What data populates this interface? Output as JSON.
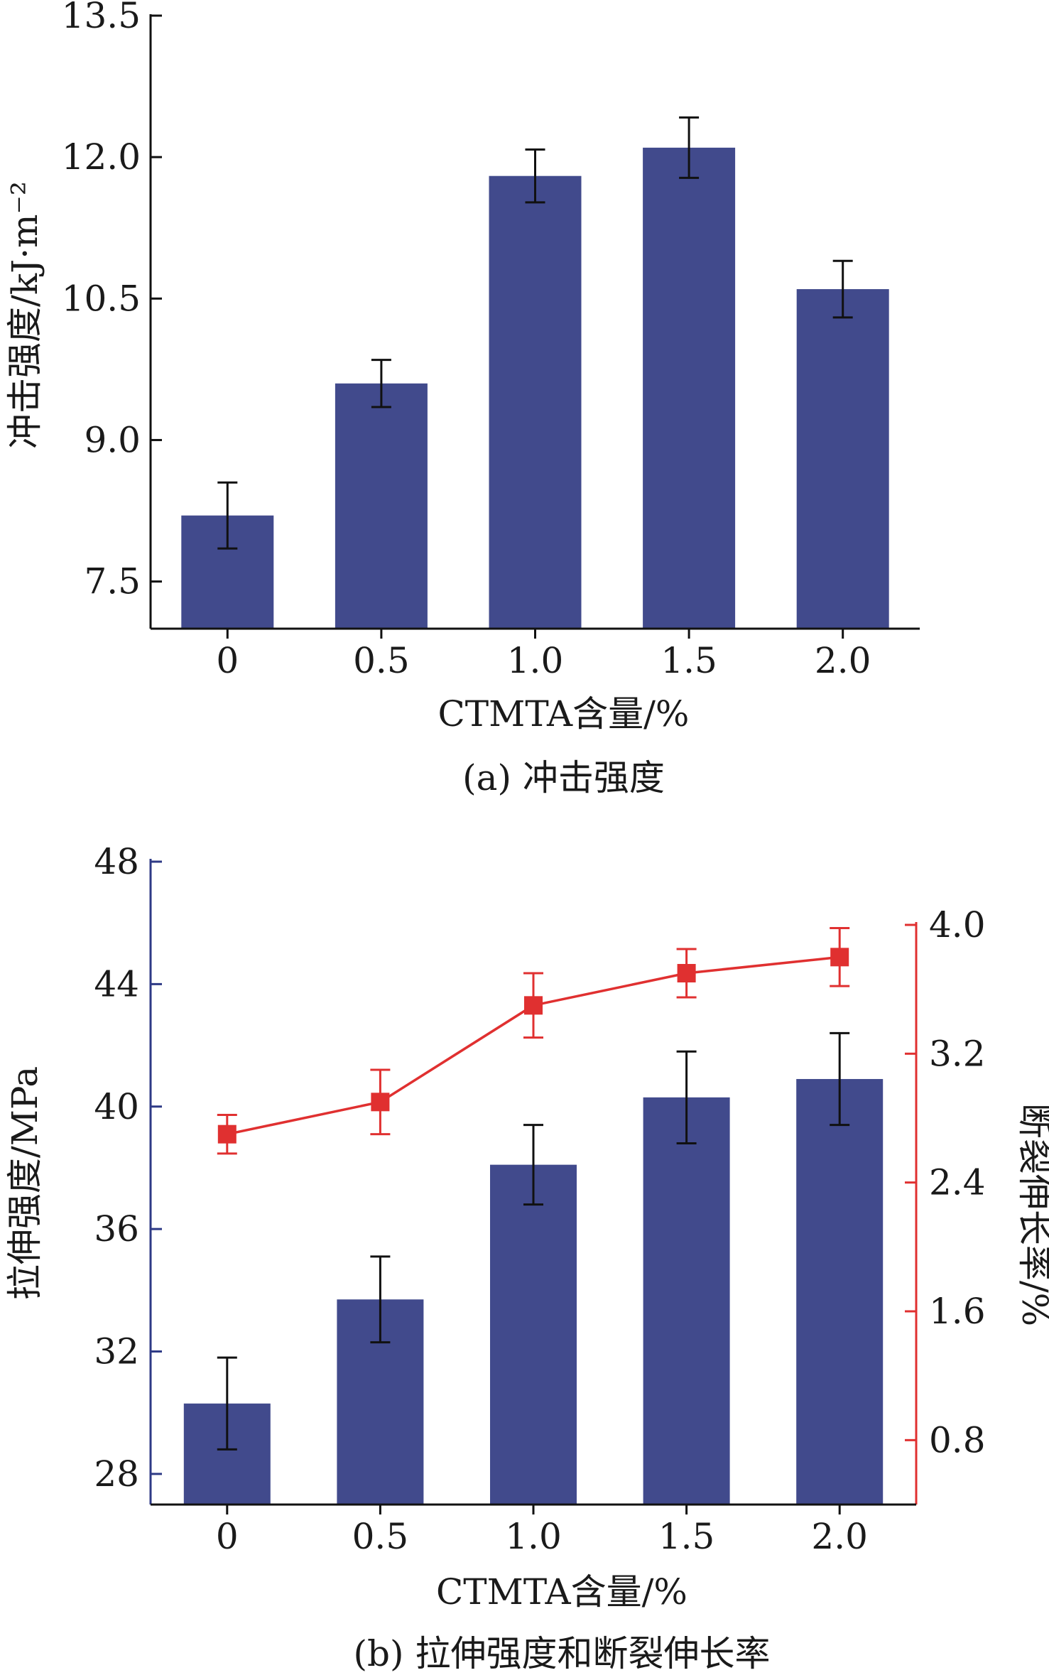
{
  "chart_data": [
    {
      "type": "bar",
      "caption": "(a) 冲击强度",
      "xlabel": "CTMTA含量/%",
      "ylabel": "冲击强度/kJ·m⁻²",
      "categories": [
        "0",
        "0.5",
        "1.0",
        "1.5",
        "2.0"
      ],
      "values": [
        8.2,
        9.6,
        11.8,
        12.1,
        10.6
      ],
      "errors": [
        0.35,
        0.25,
        0.28,
        0.32,
        0.3
      ],
      "ylim": [
        7.0,
        13.5
      ],
      "yticks": [
        "7.5",
        "9.0",
        "10.5",
        "12.0",
        "13.5"
      ],
      "bar_color": "#414a8c",
      "grid": false
    },
    {
      "type": "bar+line",
      "caption": "(b) 拉伸强度和断裂伸长率",
      "xlabel": "CTMTA含量/%",
      "ylabel_left": "拉伸强度/MPa",
      "ylabel_right": "断裂伸长率/%",
      "categories": [
        "0",
        "0.5",
        "1.0",
        "1.5",
        "2.0"
      ],
      "bar_series": {
        "values": [
          30.3,
          33.7,
          38.1,
          40.3,
          40.9
        ],
        "errors": [
          1.5,
          1.4,
          1.3,
          1.5,
          1.5
        ],
        "color": "#414a8c"
      },
      "line_series": {
        "values": [
          2.7,
          2.9,
          3.5,
          3.7,
          3.8
        ],
        "errors": [
          0.12,
          0.2,
          0.2,
          0.15,
          0.18
        ],
        "color": "#e03030"
      },
      "ylim_left": [
        27.0,
        48.0
      ],
      "ylim_right": [
        0.4,
        4.0
      ],
      "yticks_left": [
        "28",
        "32",
        "36",
        "40",
        "44",
        "48"
      ],
      "yticks_right": [
        "0.8",
        "1.6",
        "2.4",
        "3.2",
        "4.0"
      ],
      "grid": false
    }
  ]
}
